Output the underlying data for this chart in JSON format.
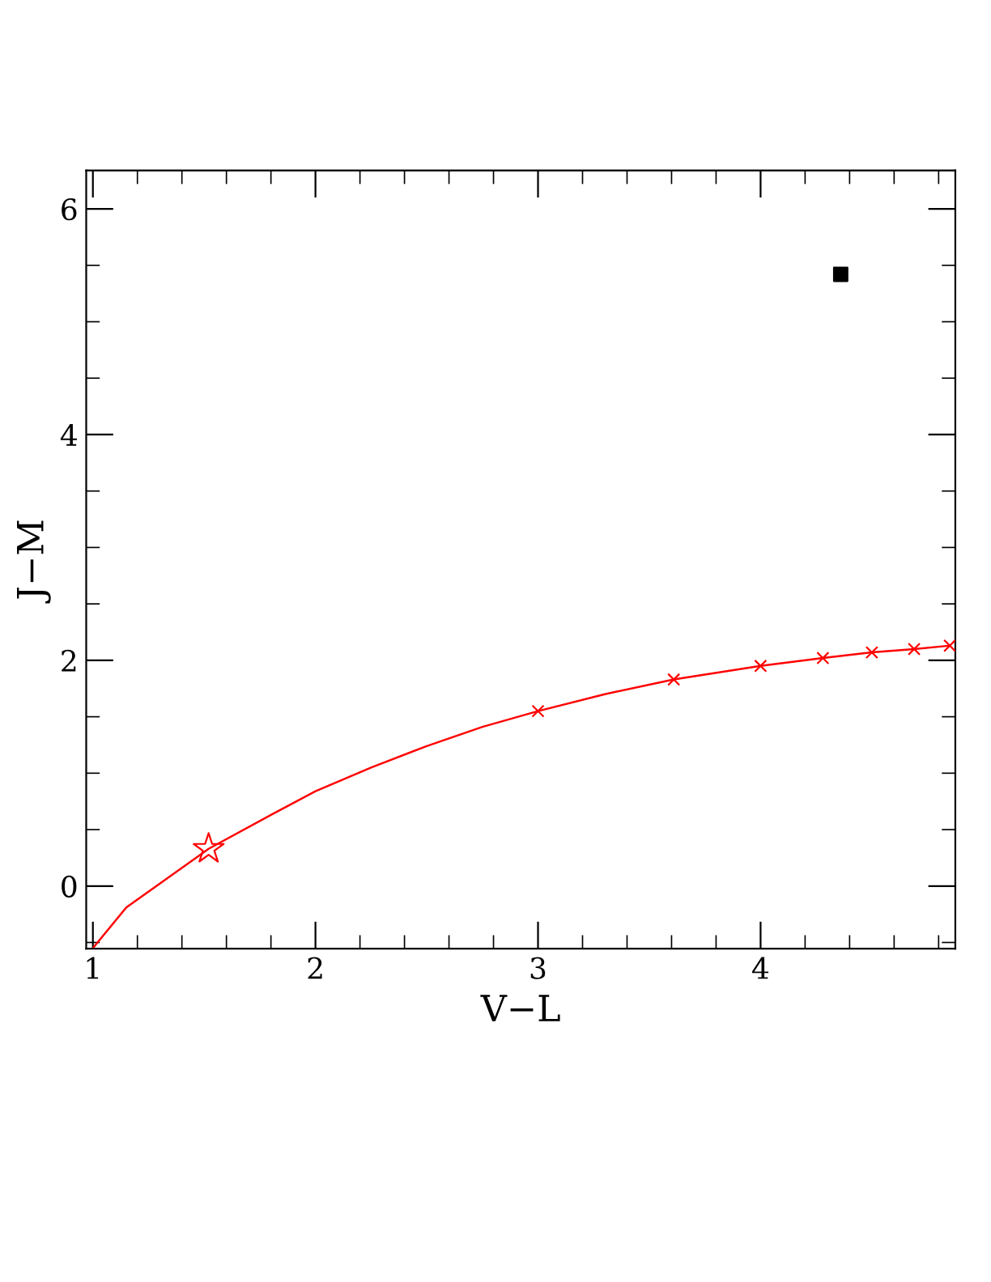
{
  "chart_data": {
    "type": "line",
    "xlabel": "V−L",
    "ylabel": "J−M",
    "series": [
      {
        "color": "#ff0000",
        "marker": "none",
        "line_style": "solid",
        "x": [
          1.0,
          1.15,
          1.52,
          1.8,
          2.0,
          2.25,
          2.5,
          2.75,
          3.0,
          3.3,
          3.61,
          4.0,
          4.28,
          4.5,
          4.69,
          4.85
        ],
        "values": [
          -0.55,
          -0.19,
          0.33,
          0.63,
          0.84,
          1.05,
          1.24,
          1.41,
          1.55,
          1.7,
          1.83,
          1.95,
          2.02,
          2.07,
          2.1,
          2.13
        ]
      },
      {
        "type": "scatter",
        "color": "#ff0000",
        "marker": "cross",
        "x": [
          3.0,
          3.61,
          4.0,
          4.28,
          4.5,
          4.69,
          4.85
        ],
        "values": [
          1.55,
          1.83,
          1.95,
          2.02,
          2.07,
          2.1,
          2.13
        ]
      },
      {
        "type": "scatter",
        "color": "#ff0000",
        "marker": "star",
        "x": [
          1.52
        ],
        "values": [
          0.33
        ]
      },
      {
        "type": "scatter",
        "color": "#000000",
        "marker": "square",
        "x": [
          4.36
        ],
        "values": [
          5.42
        ]
      }
    ],
    "xlim": [
      0.97,
      4.875
    ],
    "ylim": [
      -0.555,
      6.34
    ],
    "xticks": [
      1,
      {
        "value": 1.2,
        "label": null
      },
      {
        "value": 1.4,
        "label": null
      },
      {
        "value": 1.6,
        "label": null
      },
      {
        "value": 1.8,
        "label": null
      },
      2,
      {
        "value": 2.2,
        "label": null
      },
      {
        "value": 2.4,
        "label": null
      },
      {
        "value": 2.6,
        "label": null
      },
      {
        "value": 2.8,
        "label": null
      },
      3,
      {
        "value": 3.2,
        "label": null
      },
      {
        "value": 3.4,
        "label": null
      },
      {
        "value": 3.6,
        "label": null
      },
      {
        "value": 3.8,
        "label": null
      },
      4,
      {
        "value": 4.2,
        "label": null
      },
      {
        "value": 4.4,
        "label": null
      },
      {
        "value": 4.6,
        "label": null
      },
      {
        "value": 4.8,
        "label": null
      }
    ],
    "yticks": [
      {
        "value": -0.5,
        "label": null
      },
      0,
      {
        "value": 0.5,
        "label": null
      },
      {
        "value": 1,
        "label": null
      },
      {
        "value": 1.5,
        "label": null
      },
      2,
      {
        "value": 2.5,
        "label": null
      },
      {
        "value": 3,
        "label": null
      },
      {
        "value": 3.5,
        "label": null
      },
      4,
      {
        "value": 4.5,
        "label": null
      },
      {
        "value": 5,
        "label": null
      },
      {
        "value": 5.5,
        "label": null
      },
      6
    ],
    "grid": false,
    "legend": false
  }
}
